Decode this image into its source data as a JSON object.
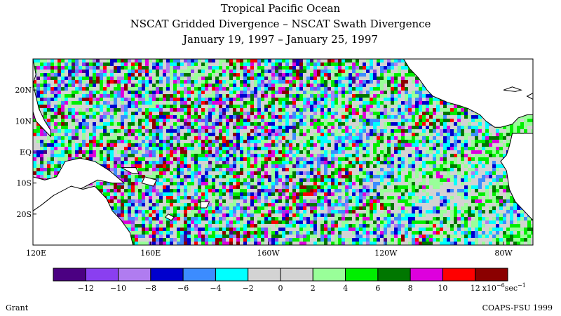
{
  "header": {
    "title": "Tropical Pacific Ocean",
    "subtitle": "NSCAT Gridded Divergence – NSCAT Swath Divergence",
    "date_range": "January 19, 1997 – January 25, 1997"
  },
  "map": {
    "lon_range": [
      120,
      290
    ],
    "lat_range": [
      -30,
      30
    ],
    "lon_ticks": [
      {
        "lon": 120,
        "label": "120E"
      },
      {
        "lon": 160,
        "label": "160E"
      },
      {
        "lon": 200,
        "label": "160W"
      },
      {
        "lon": 240,
        "label": "120W"
      },
      {
        "lon": 280,
        "label": "80W"
      }
    ],
    "lat_ticks": [
      {
        "lat": 20,
        "label": "20N"
      },
      {
        "lat": 10,
        "label": "10N"
      },
      {
        "lat": 0,
        "label": "EQ"
      },
      {
        "lat": -10,
        "label": "10S"
      },
      {
        "lat": -20,
        "label": "20S"
      }
    ],
    "land_color": "#ffffff",
    "coast_color": "#000000"
  },
  "colorbar": {
    "colors": [
      "#4b0082",
      "#8a3ff0",
      "#b07cf0",
      "#0000cd",
      "#3c8cff",
      "#00ffff",
      "#d3d3d3",
      "#d3d3d3",
      "#99ff99",
      "#00ee00",
      "#007700",
      "#dd00dd",
      "#ff0000",
      "#8b0000"
    ],
    "ticks": [
      "−12",
      "−10",
      "−8",
      "−6",
      "−4",
      "−2",
      "0",
      "2",
      "4",
      "6",
      "8",
      "10",
      "12"
    ],
    "units_prefix": "x10",
    "units_exponent": "−6",
    "units_suffix": "sec",
    "units_suffix_exponent": "−1"
  },
  "footer": {
    "author": "Grant",
    "credit": "COAPS-FSU 1999"
  }
}
